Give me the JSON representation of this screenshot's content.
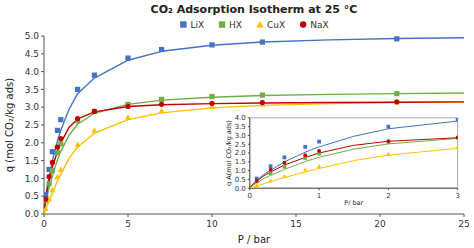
{
  "chart_data": [
    {
      "type": "scatter",
      "title": "CO₂ Adsorption Isotherm at 25 °C",
      "xlabel": "P / bar",
      "ylabel": "q (mol CO₂/kg ads)",
      "xlim": [
        0,
        25
      ],
      "ylim": [
        0,
        5
      ],
      "xticks": [
        0,
        5,
        10,
        15,
        20,
        25
      ],
      "yticks": [
        {
          "value": 0,
          "label": "0.0"
        },
        0.5,
        {
          "value": 1.0,
          "label": "1.0"
        },
        1.5,
        {
          "value": 2.0,
          "label": "2.0"
        },
        2.5,
        {
          "value": 3.0,
          "label": "3.0"
        },
        3.5,
        {
          "value": 4.0,
          "label": "4.0"
        },
        4.5,
        {
          "value": 5.0,
          "label": "5.0"
        }
      ],
      "grid": false,
      "legend": "top",
      "series": [
        {
          "type": "line",
          "color": "#4472c4",
          "x": [
            0.01,
            0.05,
            0.1,
            0.2,
            0.3,
            0.5,
            0.8,
            1.0,
            1.5,
            2.0,
            3.0,
            5.0,
            7.0,
            10.0,
            13.0,
            17.0,
            21.0,
            25.0
          ],
          "values": [
            0.1,
            0.25,
            0.45,
            0.78,
            1.02,
            1.5,
            2.05,
            2.35,
            2.95,
            3.38,
            3.82,
            4.32,
            4.57,
            4.74,
            4.83,
            4.89,
            4.93,
            4.95
          ]
        },
        {
          "type": "line",
          "color": "#70ad47",
          "x": [
            0.01,
            0.05,
            0.1,
            0.2,
            0.3,
            0.5,
            0.8,
            1.0,
            1.5,
            2.0,
            3.0,
            5.0,
            7.0,
            10.0,
            13.0,
            17.0,
            21.0,
            25.0
          ],
          "values": [
            0.07,
            0.17,
            0.3,
            0.55,
            0.73,
            1.07,
            1.52,
            1.76,
            2.22,
            2.52,
            2.83,
            3.08,
            3.2,
            3.28,
            3.33,
            3.36,
            3.38,
            3.4
          ]
        },
        {
          "type": "line",
          "color": "#ffc000",
          "x": [
            0.01,
            0.05,
            0.1,
            0.2,
            0.3,
            0.5,
            0.8,
            1.0,
            1.5,
            2.0,
            3.0,
            5.0,
            7.0,
            10.0,
            13.0,
            17.0,
            21.0,
            25.0
          ],
          "values": [
            0.03,
            0.07,
            0.13,
            0.25,
            0.37,
            0.6,
            0.93,
            1.12,
            1.57,
            1.88,
            2.27,
            2.65,
            2.84,
            2.98,
            3.05,
            3.1,
            3.13,
            3.15
          ]
        },
        {
          "type": "line",
          "color": "#c00000",
          "x": [
            0.01,
            0.05,
            0.1,
            0.2,
            0.3,
            0.5,
            0.8,
            1.0,
            1.5,
            2.0,
            3.0,
            5.0,
            7.0,
            10.0,
            13.0,
            17.0,
            21.0,
            25.0
          ],
          "values": [
            0.09,
            0.23,
            0.4,
            0.7,
            0.92,
            1.32,
            1.75,
            2.0,
            2.44,
            2.67,
            2.87,
            3.02,
            3.07,
            3.1,
            3.12,
            3.13,
            3.14,
            3.15
          ]
        },
        {
          "type": "scatter",
          "name": "LiX",
          "color": "#4472c4",
          "marker": "square",
          "x": [
            0.1,
            0.3,
            0.5,
            0.8,
            1.0,
            2.0,
            3.0,
            5.0,
            7.0,
            10.0,
            13.0,
            21.0
          ],
          "values": [
            0.55,
            1.25,
            1.75,
            2.35,
            2.65,
            3.5,
            3.9,
            4.38,
            4.62,
            4.75,
            4.83,
            4.92
          ]
        },
        {
          "type": "scatter",
          "name": "HX",
          "color": "#70ad47",
          "marker": "square",
          "x": [
            0.1,
            0.3,
            0.5,
            0.8,
            1.0,
            2.0,
            3.0,
            5.0,
            7.0,
            10.0,
            13.0,
            21.0
          ],
          "values": [
            0.38,
            0.85,
            1.22,
            1.72,
            1.97,
            2.62,
            2.88,
            3.08,
            3.22,
            3.3,
            3.34,
            3.38
          ]
        },
        {
          "type": "scatter",
          "name": "CuX",
          "color": "#ffc000",
          "marker": "triangle",
          "x": [
            0.1,
            0.3,
            0.5,
            0.8,
            1.0,
            2.0,
            3.0,
            5.0,
            7.0,
            10.0,
            13.0,
            21.0
          ],
          "values": [
            0.15,
            0.42,
            0.68,
            1.05,
            1.25,
            1.95,
            2.35,
            2.72,
            2.9,
            3.02,
            3.08,
            3.14
          ]
        },
        {
          "type": "scatter",
          "name": "NaX",
          "color": "#c00000",
          "marker": "circle",
          "x": [
            0.1,
            0.3,
            0.5,
            0.8,
            1.0,
            2.0,
            3.0,
            5.0,
            7.0,
            10.0,
            13.0,
            21.0
          ],
          "values": [
            0.42,
            1.05,
            1.45,
            1.88,
            2.12,
            2.68,
            2.88,
            3.02,
            3.08,
            3.11,
            3.13,
            3.15
          ]
        }
      ]
    },
    {
      "type": "scatter",
      "xlabel": "P/ bar",
      "ylabel": "q A(mol CO₂/kg ads)",
      "xlim": [
        0,
        3
      ],
      "ylim": [
        0,
        4
      ],
      "xticks": [
        0,
        1,
        2,
        3
      ],
      "yticks": [
        {
          "value": 0,
          "label": "0.0"
        },
        0.5,
        {
          "value": 1.0,
          "label": "1.0"
        },
        1.5,
        {
          "value": 2.0,
          "label": "2.0"
        },
        2.5,
        {
          "value": 3.0,
          "label": "3.0"
        },
        3.5,
        {
          "value": 4.0,
          "label": "4.0"
        }
      ],
      "series": [
        {
          "type": "line",
          "color": "#4472c4",
          "x": [
            0.01,
            0.05,
            0.1,
            0.2,
            0.3,
            0.5,
            0.8,
            1.0,
            1.5,
            2.0,
            3.0
          ],
          "values": [
            0.1,
            0.25,
            0.45,
            0.78,
            1.02,
            1.5,
            2.05,
            2.35,
            2.95,
            3.38,
            3.82
          ]
        },
        {
          "type": "line",
          "color": "#70ad47",
          "x": [
            0.01,
            0.05,
            0.1,
            0.2,
            0.3,
            0.5,
            0.8,
            1.0,
            1.5,
            2.0,
            3.0
          ],
          "values": [
            0.07,
            0.17,
            0.3,
            0.55,
            0.73,
            1.07,
            1.52,
            1.76,
            2.22,
            2.52,
            2.83
          ]
        },
        {
          "type": "line",
          "color": "#ffc000",
          "x": [
            0.01,
            0.05,
            0.1,
            0.2,
            0.3,
            0.5,
            0.8,
            1.0,
            1.5,
            2.0,
            3.0
          ],
          "values": [
            0.03,
            0.07,
            0.13,
            0.25,
            0.37,
            0.6,
            0.93,
            1.12,
            1.57,
            1.88,
            2.27
          ]
        },
        {
          "type": "line",
          "color": "#c00000",
          "x": [
            0.01,
            0.05,
            0.1,
            0.2,
            0.3,
            0.5,
            0.8,
            1.0,
            1.5,
            2.0,
            3.0
          ],
          "values": [
            0.09,
            0.23,
            0.4,
            0.7,
            0.92,
            1.32,
            1.75,
            2.0,
            2.44,
            2.67,
            2.87
          ]
        },
        {
          "type": "scatter",
          "color": "#4472c4",
          "marker": "square",
          "x": [
            0.1,
            0.3,
            0.5,
            0.8,
            1.0,
            2.0,
            3.0
          ],
          "values": [
            0.55,
            1.25,
            1.75,
            2.35,
            2.65,
            3.5,
            3.9
          ]
        },
        {
          "type": "scatter",
          "color": "#70ad47",
          "marker": "square",
          "x": [
            0.1,
            0.3,
            0.5,
            0.8,
            1.0,
            2.0,
            3.0
          ],
          "values": [
            0.38,
            0.85,
            1.22,
            1.72,
            1.97,
            2.62,
            2.88
          ]
        },
        {
          "type": "scatter",
          "color": "#ffc000",
          "marker": "triangle",
          "x": [
            0.1,
            0.3,
            0.5,
            0.8,
            1.0,
            2.0,
            3.0
          ],
          "values": [
            0.15,
            0.42,
            0.68,
            1.05,
            1.25,
            1.95,
            2.35
          ]
        },
        {
          "type": "scatter",
          "color": "#c00000",
          "marker": "circle",
          "x": [
            0.1,
            0.3,
            0.5,
            0.8,
            1.0,
            2.0,
            3.0
          ],
          "values": [
            0.42,
            1.05,
            1.45,
            1.88,
            2.12,
            2.68,
            2.88
          ]
        }
      ]
    }
  ]
}
